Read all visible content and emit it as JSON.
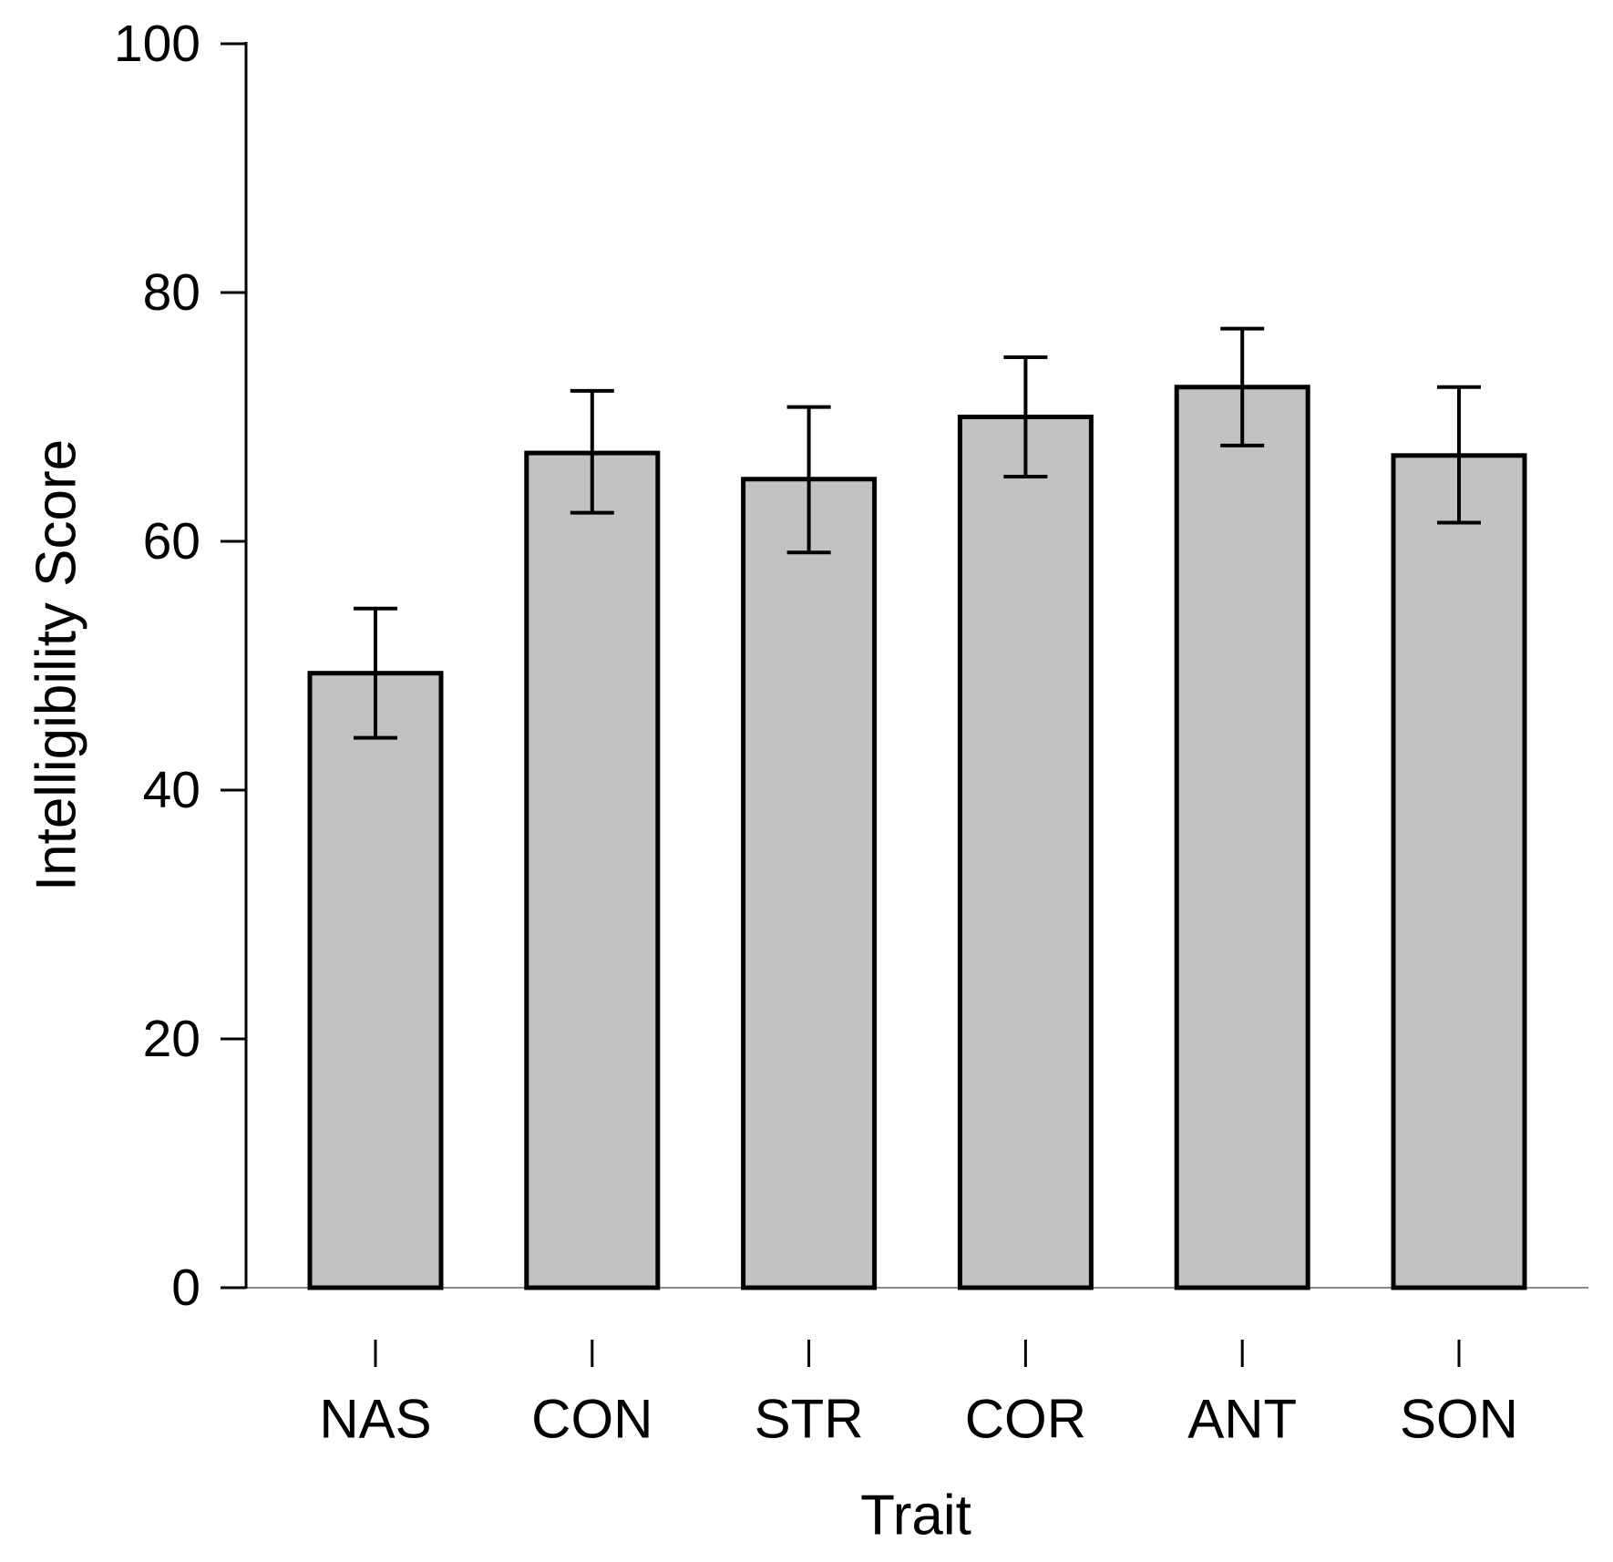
{
  "figure": {
    "background": "#ffffff"
  },
  "chart_data": {
    "type": "bar",
    "title": "",
    "xlabel": "Trait",
    "ylabel": "Intelligibility Score",
    "categories": [
      "NAS",
      "CON",
      "STR",
      "COR",
      "ANT",
      "SON"
    ],
    "values": [
      49.4,
      67.1,
      65.0,
      70.0,
      72.4,
      66.9
    ],
    "error_low": [
      44.2,
      62.3,
      59.1,
      65.2,
      67.7,
      61.5
    ],
    "error_high": [
      54.6,
      72.1,
      70.8,
      74.8,
      77.1,
      72.4
    ],
    "ylim": [
      0,
      100
    ],
    "yticks": [
      0,
      20,
      40,
      60,
      80,
      100
    ],
    "grid": false,
    "legend": "none",
    "colors": {
      "bar_fill": "#C2C2C2",
      "bar_border": "#000000",
      "errorbar": "#000000",
      "axis": "#000000",
      "baseline": "#8a8a8a",
      "text": "#000000"
    }
  }
}
